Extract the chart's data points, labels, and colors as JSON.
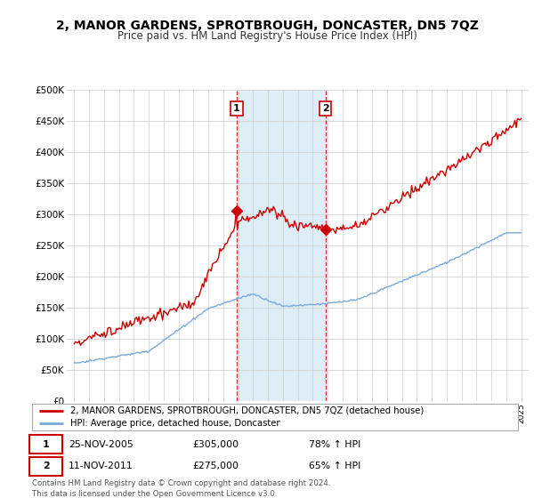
{
  "title": "2, MANOR GARDENS, SPROTBROUGH, DONCASTER, DN5 7QZ",
  "subtitle": "Price paid vs. HM Land Registry's House Price Index (HPI)",
  "title_fontsize": 10,
  "subtitle_fontsize": 8.5,
  "ylim": [
    0,
    500000
  ],
  "yticks": [
    0,
    50000,
    100000,
    150000,
    200000,
    250000,
    300000,
    350000,
    400000,
    450000,
    500000
  ],
  "ytick_labels": [
    "£0",
    "£50K",
    "£100K",
    "£150K",
    "£200K",
    "£250K",
    "£300K",
    "£350K",
    "£400K",
    "£450K",
    "£500K"
  ],
  "hpi_color": "#7aaadd",
  "price_color": "#cc0000",
  "shaded_color": "#ddeef8",
  "transaction1_date": 2005.9,
  "transaction1_price": 305000,
  "transaction1_label": "1",
  "transaction2_date": 2011.87,
  "transaction2_price": 275000,
  "transaction2_label": "2",
  "legend_property": "2, MANOR GARDENS, SPROTBROUGH, DONCASTER, DN5 7QZ (detached house)",
  "legend_hpi": "HPI: Average price, detached house, Doncaster",
  "table_row1": [
    "1",
    "25-NOV-2005",
    "£305,000",
    "78% ↑ HPI"
  ],
  "table_row2": [
    "2",
    "11-NOV-2011",
    "£275,000",
    "65% ↑ HPI"
  ],
  "footnote": "Contains HM Land Registry data © Crown copyright and database right 2024.\nThis data is licensed under the Open Government Licence v3.0.",
  "background_color": "#ffffff",
  "grid_color": "#cccccc"
}
